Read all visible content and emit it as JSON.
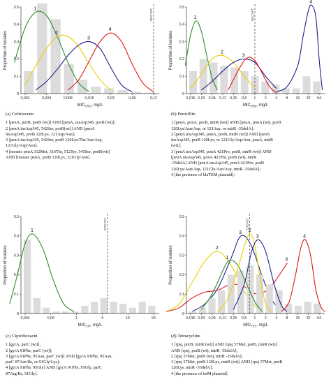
{
  "common": {
    "ylabel": "Proportion of isolates",
    "ylim": [
      0,
      0.5
    ]
  },
  "colors": {
    "c1": "#2e8b2e",
    "c2": "#e6d200",
    "c3": "#1f1f8a",
    "c4": "#e01515",
    "bar": "#dcdcdc",
    "eucast": "#555555"
  },
  "panels": [
    {
      "key": "a",
      "caption_title": "(a) Ceftriaxone",
      "caption_lines": [
        "1 [penA, porB, porB (wt)] AND [penA, insAsp345, porB (wt)];",
        "2 [penA insAsp345, 542Ser, porB(wt)] AND [penA",
        "insAsp345, porB 120Lys, 121Asp/Asn];",
        "3 [penA insAsp345, 542Ser, porB 120Lys/Thr/Asn/Asp,",
        "121Gly/Asp/Asn];",
        "4 [mosaic penA 312Met, 316Thr, 512Tyr, 545Ser, porB(wt)]",
        "AND [mosaic penA, porB 120Lys, 121Gly/Asn]."
      ],
      "xlabel": "MIC",
      "xlabel_sub": "CRO",
      "xlabel_unit": ", mg/L",
      "eucast": "EUCAST",
      "chart_data": {
        "type": "line",
        "x": [
          "0,002",
          "0,004",
          "0,008",
          "0,015",
          "0,03",
          "0,06",
          "0,12"
        ],
        "bars": [
          0.13,
          0.52,
          0.43,
          0.17,
          0.08,
          0.04,
          0.03,
          0.02,
          0.01,
          0.005
        ],
        "eucast_index": 6,
        "series": [
          {
            "name": "1",
            "color_key": "c1",
            "points": [
              [
                -0.5,
                0.18
              ],
              [
                0,
                0.38
              ],
              [
                0.5,
                0.47
              ],
              [
                1,
                0.45
              ],
              [
                1.5,
                0.33
              ],
              [
                2,
                0.18
              ],
              [
                2.5,
                0.06
              ],
              [
                3,
                0.01
              ]
            ]
          },
          {
            "name": "2",
            "color_key": "c2",
            "points": [
              [
                0,
                0.05
              ],
              [
                0.5,
                0.16
              ],
              [
                1,
                0.26
              ],
              [
                1.5,
                0.33
              ],
              [
                2,
                0.33
              ],
              [
                2.5,
                0.27
              ],
              [
                3,
                0.17
              ],
              [
                3.5,
                0.08
              ],
              [
                4,
                0.02
              ]
            ]
          },
          {
            "name": "3",
            "color_key": "c3",
            "points": [
              [
                0.5,
                0.02
              ],
              [
                1,
                0.07
              ],
              [
                1.5,
                0.14
              ],
              [
                2,
                0.22
              ],
              [
                2.5,
                0.28
              ],
              [
                3,
                0.3
              ],
              [
                3.5,
                0.26
              ],
              [
                4,
                0.15
              ],
              [
                4.5,
                0.05
              ],
              [
                5,
                0.01
              ]
            ]
          },
          {
            "name": "4",
            "color_key": "c4",
            "points": [
              [
                2,
                0.02
              ],
              [
                2.5,
                0.08
              ],
              [
                3,
                0.19
              ],
              [
                3.5,
                0.3
              ],
              [
                4,
                0.35
              ],
              [
                4.5,
                0.3
              ],
              [
                5,
                0.17
              ],
              [
                5.5,
                0.06
              ],
              [
                6,
                0.01
              ]
            ]
          }
        ]
      }
    },
    {
      "key": "b",
      "caption_title": "(b) Penicillin",
      "caption_lines": [
        "1 [penA, ponA, porB, mtrR (wt)] AND [penA, ponA (wt), porB",
        "120Lys/Asn/Asp, or 121Asp, or mtrR -35delA];",
        "2 [penA insAsp345, ponA, porB, mtrR (wt)] AND [penA",
        "insAsp345, porB 120Lys, or 121Gly/Asp/Asn, ponA, mtrR",
        "(wt)];",
        "3 [penA insAsp345, ponA 421Pro, porB, mtrR (wt)] AND",
        "[penA insAsp345, ponA 421Pro, porB (wt), mtrR",
        "-35delA] AND [penA insAsp345, ponA 421Pro, porB",
        "120Lys/Asn/Asp, 121Gly/Asn/Asp, mtrR -35delA];",
        "4 [the presence of blaTEM plasmid]."
      ],
      "xlabel": "MIC",
      "xlabel_sub": "PEN",
      "xlabel_unit": ", mg/L",
      "eucast": "EUCAST",
      "chart_data": {
        "type": "line",
        "x": [
          "0,015",
          "0,03",
          "0,06",
          "0,12",
          "0,25",
          "0,5",
          "1",
          "2",
          "4",
          "8",
          "16",
          "32",
          "64"
        ],
        "bars": [
          0.13,
          0.2,
          0.18,
          0.16,
          0.15,
          0.13,
          0.1,
          0.07,
          0.05,
          0.03,
          0.03,
          0.1,
          0.07
        ],
        "eucast_index": 6,
        "series": [
          {
            "name": "1",
            "color_key": "c1",
            "points": [
              [
                -0.5,
                0.16
              ],
              [
                0,
                0.34
              ],
              [
                0.5,
                0.42
              ],
              [
                1,
                0.36
              ],
              [
                1.5,
                0.22
              ],
              [
                2,
                0.09
              ],
              [
                2.5,
                0.02
              ]
            ]
          },
          {
            "name": "2",
            "color_key": "c2",
            "points": [
              [
                0,
                0.03
              ],
              [
                1,
                0.11
              ],
              [
                2,
                0.2
              ],
              [
                3,
                0.22
              ],
              [
                4,
                0.18
              ],
              [
                5,
                0.1
              ],
              [
                6,
                0.03
              ]
            ]
          },
          {
            "name": "3",
            "color_key": "c3",
            "points": [
              [
                1,
                0.02
              ],
              [
                2,
                0.07
              ],
              [
                3,
                0.13
              ],
              [
                4,
                0.18
              ],
              [
                5,
                0.2
              ],
              [
                6,
                0.18
              ],
              [
                7,
                0.1
              ],
              [
                8,
                0.03
              ]
            ]
          },
          {
            "name": "4",
            "color_key": "c3",
            "points": [
              [
                8,
                0.01
              ],
              [
                9,
                0.04
              ],
              [
                10,
                0.16
              ],
              [
                10.5,
                0.33
              ],
              [
                11,
                0.48
              ],
              [
                11.3,
                0.51
              ],
              [
                11.7,
                0.44
              ],
              [
                12,
                0.2
              ],
              [
                12.3,
                0.02
              ]
            ]
          },
          {
            "name": "",
            "color_key": "c4",
            "points": [
              [
                3.5,
                0.02
              ],
              [
                4,
                0.08
              ],
              [
                4.5,
                0.14
              ],
              [
                5,
                0.19
              ],
              [
                5.5,
                0.21
              ],
              [
                6,
                0.19
              ],
              [
                6.5,
                0.14
              ],
              [
                7,
                0.08
              ],
              [
                7.5,
                0.03
              ],
              [
                8,
                0.005
              ]
            ]
          }
        ]
      }
    },
    {
      "key": "c",
      "caption_title": "(c) Ciprofloxacin",
      "caption_lines": [
        "1 [gyrA, parC (wt)];",
        "2 [gyrA 91Phe, parC (wt)];",
        "3 [gyrA 91Phe, 95Asn, parC (wt)] AND [gyrA 91Phe, 95Asn,",
        "parC 87Asn/Ile, or 91Gly/Lys];",
        "4 [gyrA 91Phe, 95Gly] AND [gyrA 91Phe, 95Gly, parC",
        "87Arg/Ile, 91Gly]."
      ],
      "xlabel": "MIC",
      "xlabel_sub": "CIP",
      "xlabel_unit": ", mg/L",
      "eucast": "EUCAST",
      "chart_data": {
        "type": "line",
        "x": [
          "0,004",
          "0,06",
          "1",
          "4",
          "16",
          "64"
        ],
        "bars": [
          0.38,
          0.08,
          0.03,
          0.01,
          0.01,
          0.01,
          0.04,
          0.06,
          0.08,
          0.06,
          0.05,
          0.03,
          0.06,
          0.04
        ],
        "eucast_index": 3.2,
        "series": [
          {
            "name": "1",
            "color_key": "c1",
            "points": [
              [
                -0.6,
                0.05
              ],
              [
                -0.3,
                0.2
              ],
              [
                0,
                0.36
              ],
              [
                0.3,
                0.41
              ],
              [
                0.7,
                0.33
              ],
              [
                1.1,
                0.17
              ],
              [
                1.5,
                0.05
              ],
              [
                1.9,
                0.01
              ]
            ]
          },
          {
            "name": "2",
            "color_key": "c2",
            "points": [
              [
                5.5,
                0.01
              ],
              [
                6,
                0.05
              ],
              [
                6.5,
                0.16
              ],
              [
                7,
                0.27
              ],
              [
                7.5,
                0.32
              ],
              [
                8,
                0.25
              ],
              [
                8.5,
                0.12
              ],
              [
                9,
                0.03
              ]
            ]
          },
          {
            "name": "3",
            "color_key": "c3",
            "points": [
              [
                6.5,
                0.01
              ],
              [
                7,
                0.05
              ],
              [
                7.5,
                0.13
              ],
              [
                8,
                0.28
              ],
              [
                8.4,
                0.4
              ],
              [
                8.8,
                0.35
              ],
              [
                9.2,
                0.2
              ],
              [
                9.6,
                0.07
              ],
              [
                10,
                0.01
              ]
            ]
          },
          {
            "name": "4",
            "color_key": "c4",
            "points": [
              [
                5.5,
                0.01
              ],
              [
                6,
                0.03
              ],
              [
                6.5,
                0.08
              ],
              [
                7,
                0.11
              ],
              [
                7.5,
                0.12
              ],
              [
                8,
                0.15
              ],
              [
                8.5,
                0.14
              ],
              [
                9,
                0.1
              ],
              [
                9.5,
                0.13
              ],
              [
                10,
                0.22
              ],
              [
                10.2,
                0.26
              ]
            ]
          }
        ]
      }
    },
    {
      "key": "d",
      "caption_title": "(d) Tetracycline",
      "caption_lines": [
        "1 [rpsj, porB, mtrR (wt)] AND [rpsj 57Met, porB, mtrR (wt)]",
        "AND [rpsj, porB (wt), mtrR -35delA];",
        "2 [rpsj 57Met, porB (wt), mtrR -35delA];",
        "3 [rpsj 57Met, porB 120Lys, mtrR (wt)] AND [rpsj 57Met, porB",
        "120Lys, mtrR -35delA];",
        "4 [the presence of tetM plasmid]."
      ],
      "xlabel": "MIC",
      "xlabel_sub": "TET",
      "xlabel_unit": ", mg/L",
      "eucast": "EUCAST",
      "chart_data": {
        "type": "line",
        "x": [
          "0,015",
          "0,03",
          "0,06",
          "0,12",
          "0,25",
          "0,5",
          "1",
          "2",
          "4",
          "8",
          "16",
          "32",
          "64"
        ],
        "bars": [
          0.01,
          0.03,
          0.08,
          0.12,
          0.2,
          0.22,
          0.25,
          0.2,
          0.15,
          0.12,
          0.05,
          0.04,
          0.06,
          0.05
        ],
        "eucast_index": 5.5,
        "series": [
          {
            "name": "1",
            "color_key": "c1",
            "points": [
              [
                1,
                0.02
              ],
              [
                2,
                0.1
              ],
              [
                3,
                0.22
              ],
              [
                3.5,
                0.27
              ],
              [
                4,
                0.27
              ],
              [
                4.5,
                0.24
              ],
              [
                5,
                0.18
              ],
              [
                6,
                0.06
              ],
              [
                6.7,
                0.01
              ]
            ]
          },
          {
            "name": "2",
            "color_key": "c2",
            "points": [
              [
                2.5,
                0.01
              ],
              [
                3.5,
                0.08
              ],
              [
                4.5,
                0.25
              ],
              [
                5.2,
                0.38
              ],
              [
                5.6,
                0.41
              ],
              [
                6,
                0.35
              ],
              [
                6.5,
                0.18
              ],
              [
                7,
                0.05
              ],
              [
                7.5,
                0.01
              ]
            ]
          },
          {
            "name": "3",
            "color_key": "c3",
            "points": [
              [
                4,
                0.02
              ],
              [
                5,
                0.15
              ],
              [
                5.7,
                0.32
              ],
              [
                6.3,
                0.38
              ],
              [
                7,
                0.32
              ],
              [
                7.8,
                0.15
              ],
              [
                8.5,
                0.04
              ],
              [
                9,
                0.01
              ]
            ]
          },
          {
            "name": "4",
            "color_key": "c4",
            "points": [
              [
                8.5,
                0.01
              ],
              [
                9.2,
                0.06
              ],
              [
                9.8,
                0.2
              ],
              [
                10.3,
                0.34
              ],
              [
                10.7,
                0.38
              ],
              [
                11.2,
                0.3
              ],
              [
                11.7,
                0.12
              ],
              [
                12.2,
                0.03
              ],
              [
                12.6,
                0.01
              ]
            ]
          }
        ]
      }
    }
  ]
}
